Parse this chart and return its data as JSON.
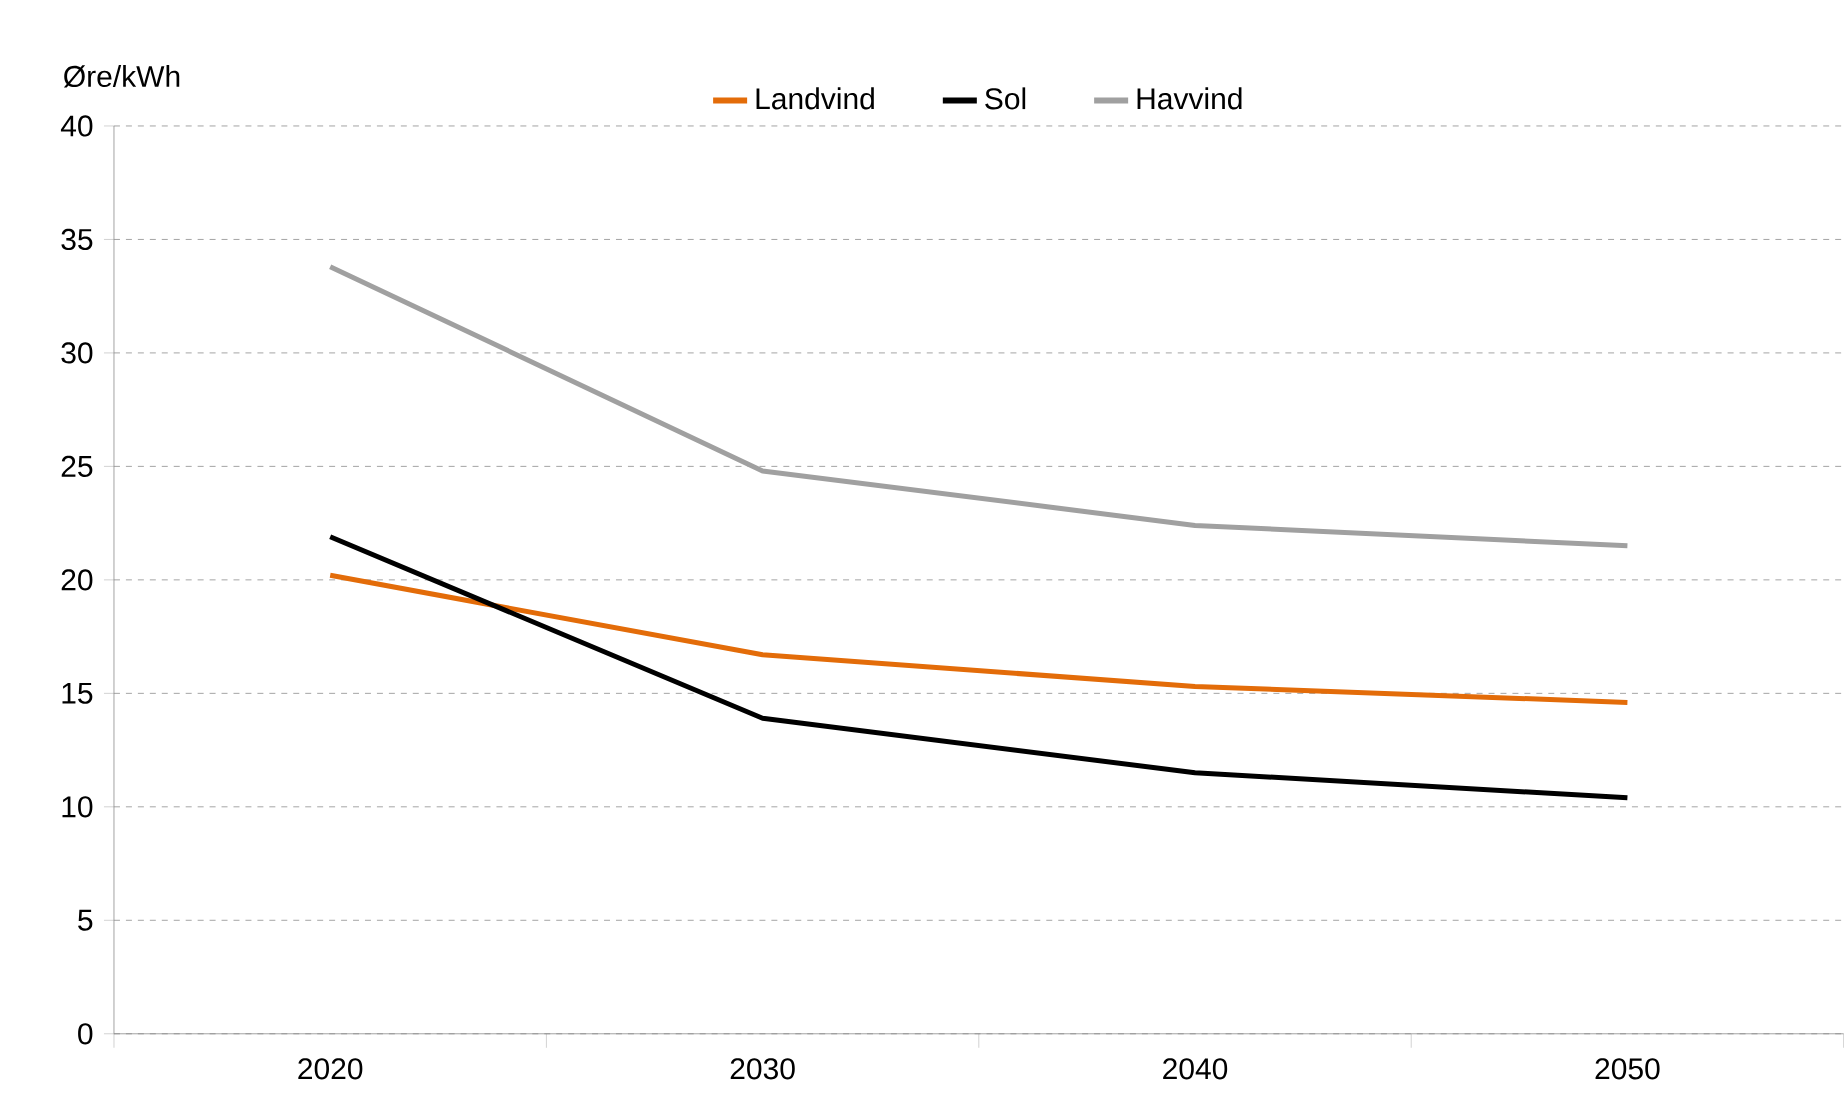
{
  "chart_data": {
    "type": "line",
    "ylabel": "Øre/kWh",
    "categories": [
      "2020",
      "2030",
      "2040",
      "2050"
    ],
    "series": [
      {
        "name": "Landvind",
        "color": "#e36c09",
        "values": [
          20.2,
          16.7,
          15.3,
          14.6
        ]
      },
      {
        "name": "Sol",
        "color": "#000000",
        "values": [
          21.9,
          13.9,
          11.5,
          10.4
        ]
      },
      {
        "name": "Havvind",
        "color": "#a0a0a0",
        "values": [
          33.8,
          24.8,
          22.4,
          21.5
        ]
      }
    ],
    "ylim": [
      0,
      40
    ],
    "yticks": [
      0,
      5,
      10,
      15,
      20,
      25,
      30,
      35,
      40
    ],
    "grid": "y",
    "legend": "top",
    "marker": "none",
    "line_style": "solid"
  }
}
